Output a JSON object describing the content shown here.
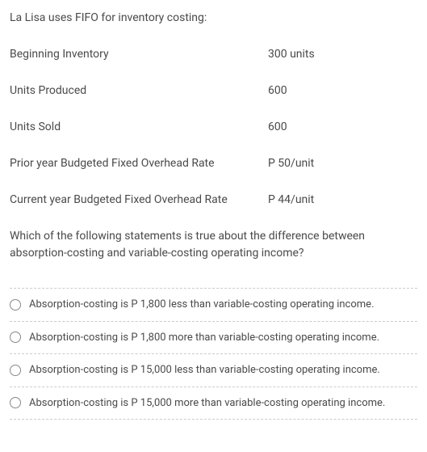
{
  "intro": "La Lisa uses FIFO for inventory costing:",
  "rows": [
    {
      "label": "Beginning Inventory",
      "value": "300 units"
    },
    {
      "label": "Units Produced",
      "value": "600"
    },
    {
      "label": "Units Sold",
      "value": "600"
    },
    {
      "label": "Prior year Budgeted Fixed Overhead Rate",
      "value": "P 50/unit"
    },
    {
      "label": "Current year Budgeted Fixed Overhead Rate",
      "value": "P 44/unit"
    }
  ],
  "question": "Which of the following statements is true about the difference between absorption-costing and variable-costing operating income?",
  "options": [
    "Absorption-costing is P 1,800 less than variable-costing operating income.",
    "Absorption-costing is P 1,800 more than variable-costing operating income.",
    "Absorption-costing is P 15,000 less than variable-costing operating income.",
    "Absorption-costing is P 15,000 more than variable-costing operating income."
  ],
  "colors": {
    "text": "#4a4a4a",
    "border": "#cccccc",
    "radio_border": "#888888",
    "background": "#ffffff"
  },
  "typography": {
    "body_fontsize": 14,
    "option_fontsize": 13
  }
}
